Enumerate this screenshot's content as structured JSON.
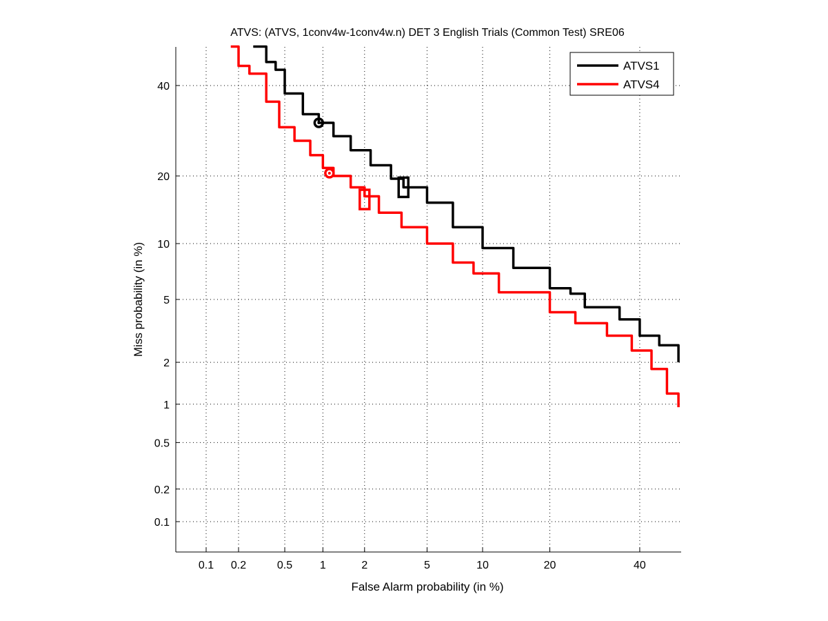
{
  "chart_data": {
    "type": "line",
    "scale": "normal-deviate (DET)",
    "title": "ATVS: (ATVS, 1conv4w-1conv4w.n) DET 3 English Trials (Common Test) SRE06",
    "xlabel": "False Alarm probability (in %)",
    "ylabel": "Miss probability (in %)",
    "xlim": [
      0.05,
      50
    ],
    "ylim": [
      0.05,
      50
    ],
    "xticks": [
      0.1,
      0.2,
      0.5,
      1,
      2,
      5,
      10,
      20,
      40
    ],
    "xtick_labels": [
      "0.1",
      "0.2",
      "0.5",
      "1",
      "2",
      "5",
      "10",
      "20",
      "40"
    ],
    "yticks": [
      0.1,
      0.2,
      0.5,
      1,
      2,
      5,
      10,
      20,
      40
    ],
    "ytick_labels": [
      "0.1",
      "0.2",
      "0.5",
      "1",
      "2",
      "5",
      "10",
      "20",
      "40"
    ],
    "grid": true,
    "legend_position": "top-right",
    "series": [
      {
        "name": "ATVS1",
        "color": "#000000",
        "x": [
          0.27,
          0.35,
          0.42,
          0.5,
          0.7,
          0.93,
          1.2,
          1.6,
          2.2,
          3,
          3.6,
          5,
          7,
          10,
          14,
          20,
          24,
          27,
          35,
          40,
          45,
          50
        ],
        "y": [
          50,
          46,
          44,
          38,
          33,
          31,
          28,
          25,
          22,
          19.5,
          18,
          15.5,
          12,
          9.5,
          7.5,
          5.8,
          5.4,
          4.5,
          3.8,
          3.0,
          2.6,
          2.0
        ],
        "min_dcf_point": [
          0.93,
          31
        ],
        "act_dcf_point": [
          3.6,
          18
        ]
      },
      {
        "name": "ATVS4",
        "color": "#ff0000",
        "x": [
          0.17,
          0.2,
          0.25,
          0.35,
          0.45,
          0.6,
          0.8,
          1.0,
          1.2,
          1.6,
          2,
          2.5,
          3.5,
          5,
          7,
          9,
          12,
          20,
          25,
          32,
          38,
          43,
          47,
          50
        ],
        "y": [
          50,
          45,
          43,
          36,
          30,
          27,
          24,
          21.5,
          20,
          18,
          16.5,
          14,
          12,
          10,
          8,
          7,
          5.5,
          4.2,
          3.6,
          3,
          2.4,
          1.8,
          1.2,
          0.95
        ],
        "min_dcf_point": [
          1.12,
          20.5
        ],
        "act_dcf_point": [
          2.0,
          16
        ]
      }
    ]
  }
}
